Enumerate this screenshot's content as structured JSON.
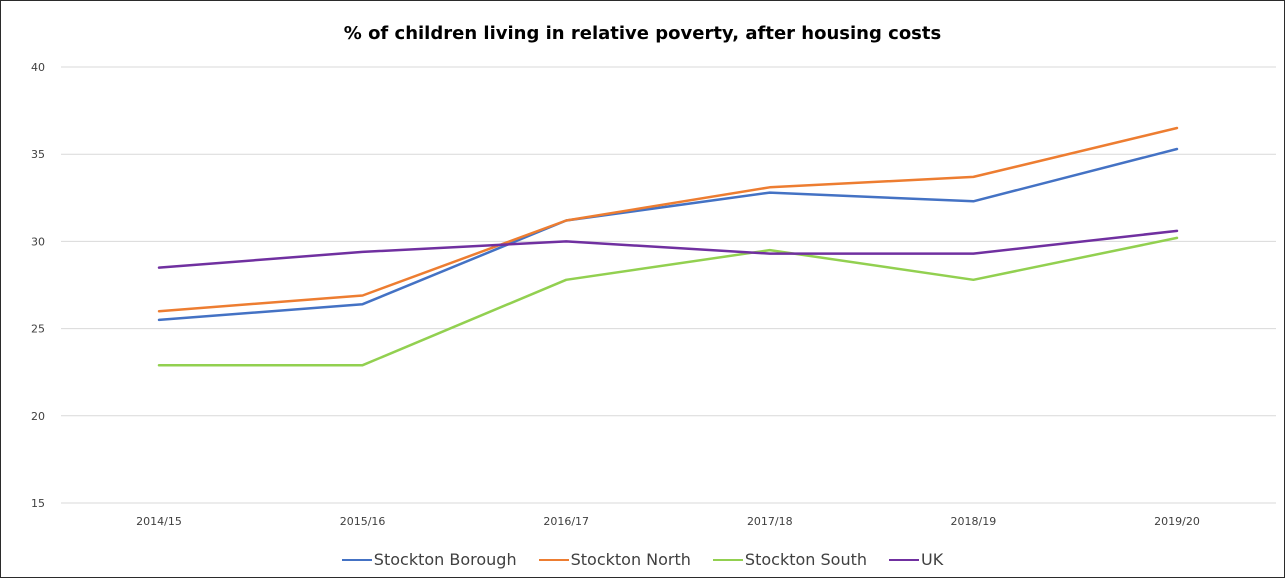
{
  "chart_data": {
    "type": "line",
    "title": "% of children living in relative poverty, after housing costs",
    "xlabel": "",
    "ylabel": "",
    "categories": [
      "2014/15",
      "2015/16",
      "2016/17",
      "2017/18",
      "2018/19",
      "2019/20"
    ],
    "ylim": [
      15,
      40
    ],
    "yticks": [
      15,
      20,
      25,
      30,
      35,
      40
    ],
    "grid": true,
    "legend_position": "bottom",
    "series": [
      {
        "name": "Stockton Borough",
        "color": "#4472C4",
        "values": [
          25.5,
          26.4,
          31.2,
          32.8,
          32.3,
          35.3
        ]
      },
      {
        "name": "Stockton North",
        "color": "#ED7D31",
        "values": [
          26.0,
          26.9,
          31.2,
          33.1,
          33.7,
          36.5
        ]
      },
      {
        "name": "Stockton South",
        "color": "#92D050",
        "values": [
          22.9,
          22.9,
          27.8,
          29.5,
          27.8,
          30.2
        ]
      },
      {
        "name": "UK",
        "color": "#7030A0",
        "values": [
          28.5,
          29.4,
          30.0,
          29.3,
          29.3,
          30.6
        ]
      }
    ]
  }
}
